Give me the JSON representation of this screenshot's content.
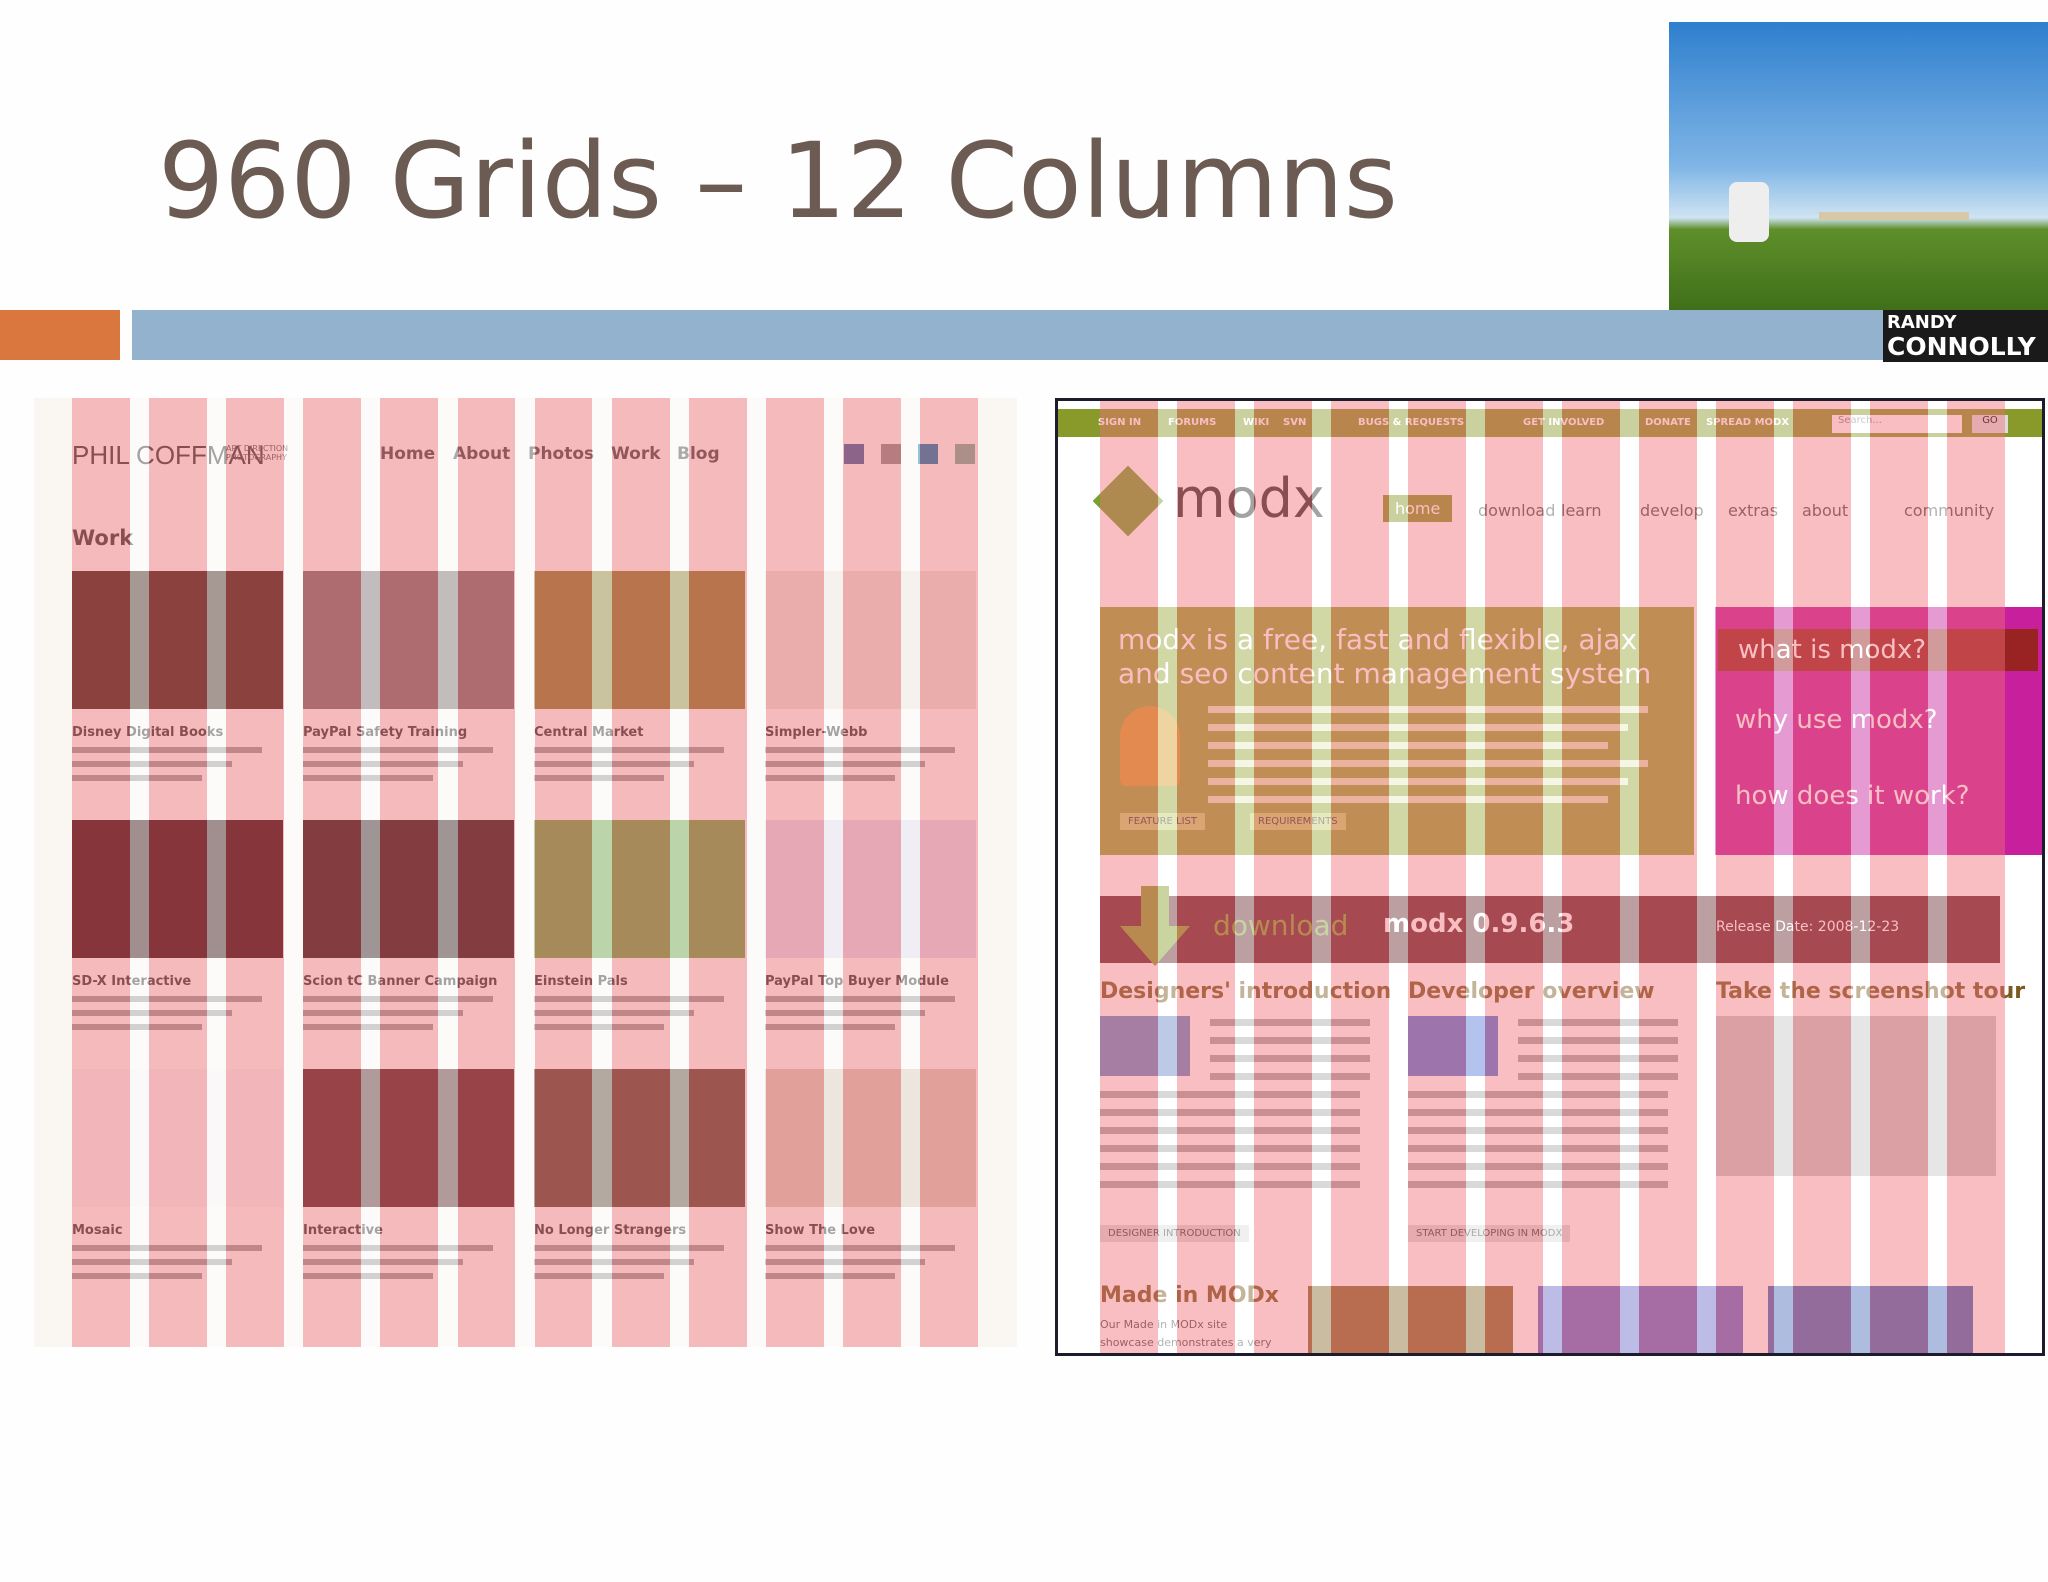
{
  "title": "960 Grids – 12 Columns",
  "logo": [
    "RANDY",
    "CONNOLLY"
  ],
  "left_site": {
    "brand": "PHIL COFFMAN",
    "brand_sub": "ART DIRECTION PHOTOGRAPHY",
    "nav": [
      "Home",
      "About",
      "Photos",
      "Work",
      "Blog"
    ],
    "section": "Work",
    "items": [
      "Disney Digital Books",
      "PayPal Safety Training",
      "Central Market",
      "Simpler-Webb",
      "SD-X Interactive",
      "Scion tC Banner Campaign",
      "Einstein Pals",
      "PayPal Top Buyer Module",
      "Mosaic",
      "Interactive",
      "No Longer Strangers",
      "Show The Love"
    ]
  },
  "right_site": {
    "top_nav": [
      "SIGN IN",
      "FORUMS",
      "WIKI",
      "SVN",
      "BUGS & REQUESTS",
      "GET INVOLVED",
      "DONATE",
      "SPREAD MODX"
    ],
    "search": "Search...",
    "go": "GO",
    "logo": "modx",
    "nav": [
      "home",
      "download",
      "learn",
      "develop",
      "extras",
      "about",
      "community"
    ],
    "tagline": "modx is a free, fast and flexible, ajax and seo content management system",
    "side": [
      "what is modx?",
      "why use modx?",
      "how does it work?"
    ],
    "buttons": [
      "FEATURE LIST",
      "REQUIREMENTS"
    ],
    "download": "download",
    "version": "modx 0.9.6.3",
    "release": "Release Date: 2008-12-23",
    "columns": [
      {
        "heading": "Designers' introduction",
        "link": "DESIGNER INTRODUCTION"
      },
      {
        "heading": "Developer overview",
        "link": "START DEVELOPING IN MODX"
      },
      {
        "heading": "Take the screenshot tour"
      }
    ],
    "made": "Made in MODx",
    "made_text": "Our Made in MODx site showcase demonstrates a very important"
  }
}
